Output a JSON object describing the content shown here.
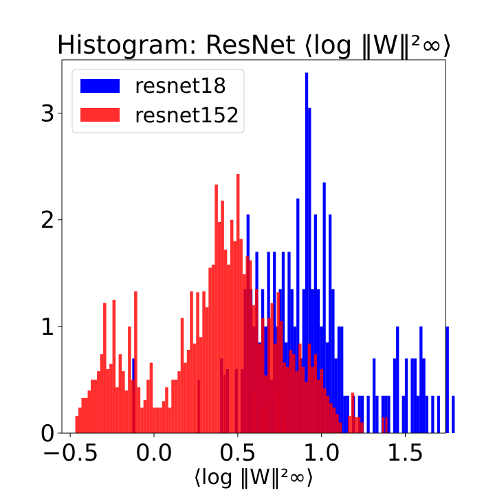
{
  "chart_data": {
    "type": "bar",
    "title": "Histogram: ResNet ⟨log ‖W‖²∞⟩",
    "xlabel": "⟨log ‖W‖²∞⟩",
    "ylabel": "",
    "xlim": [
      -0.55,
      1.74
    ],
    "ylim": [
      0,
      3.5
    ],
    "xticks": [
      -0.5,
      0.0,
      0.5,
      1.0,
      1.5
    ],
    "xtick_labels": [
      "−0.5",
      "0.0",
      "0.5",
      "1.0",
      "1.5"
    ],
    "yticks": [
      0,
      1,
      2,
      3
    ],
    "ytick_labels": [
      "0",
      "1",
      "2",
      "3"
    ],
    "legend_position": "top-left",
    "series": [
      {
        "name": "resnet18",
        "color": "#0000ff",
        "opacity": 1.0,
        "bin_start": -0.13,
        "bin_width": 0.0175,
        "counts": [
          0.7,
          0,
          0,
          0,
          0,
          0,
          0,
          0,
          0,
          0,
          0,
          0,
          0,
          0,
          0,
          0,
          0,
          0,
          0,
          0,
          0,
          0,
          0,
          0,
          0,
          0,
          0,
          0,
          0,
          0,
          0.7,
          0,
          0.6,
          0,
          0,
          0.6,
          0,
          0.6,
          1.35,
          2.05,
          1.35,
          1.0,
          1.7,
          0.85,
          1.35,
          1.0,
          1.7,
          0.5,
          1.7,
          1.0,
          1.35,
          1.7,
          0.85,
          1.7,
          1.35,
          1.0,
          2.2,
          0.7,
          1.35,
          3.38,
          3.05,
          1.35,
          2.05,
          1.35,
          1.0,
          2.35,
          0.85,
          2.05,
          1.35,
          0.7,
          1.0,
          1.0,
          0.35,
          0.35,
          0,
          0.35,
          0,
          0.35,
          0.35,
          0,
          0.35,
          0,
          0.7,
          0.35,
          0,
          0.35,
          0.35,
          0.35,
          0,
          0.7,
          1.0,
          0,
          0.35,
          0.7,
          0,
          0.7,
          0.7,
          0.35,
          1.0,
          0.7,
          0.35,
          0,
          0.35,
          0,
          0.35,
          0,
          0,
          1.0,
          0,
          0.35
        ]
      },
      {
        "name": "resnet152",
        "color": "#ff0000",
        "opacity": 0.82,
        "bin_start": -0.47,
        "bin_width": 0.0185,
        "counts": [
          0.16,
          0.24,
          0.33,
          0.33,
          0.4,
          0.5,
          0.5,
          0.58,
          0.74,
          1.22,
          0.6,
          0.65,
          1.25,
          0.43,
          0.74,
          0.58,
          0.4,
          1.0,
          0.5,
          1.33,
          0.43,
          0.24,
          0.31,
          0.5,
          0.66,
          0.24,
          0.24,
          0.24,
          0.3,
          0.43,
          0.24,
          0.5,
          0.5,
          0.58,
          1.08,
          0.66,
          0.78,
          1.33,
          0.84,
          1.32,
          0.9,
          1.33,
          1.18,
          1.55,
          1.58,
          2.33,
          1.98,
          2.18,
          1.72,
          1.58,
          2.0,
          1.8,
          2.43,
          1.82,
          1.49,
          1.66,
          1.62,
          1.2,
          1.35,
          0.84,
          1.08,
          0.54,
          1.08,
          1.22,
          0.84,
          1.32,
          1.05,
          0.66,
          0.62,
          0.78,
          0.74,
          0.58,
          0.84,
          0.62,
          0.48,
          0.84,
          0.62,
          0.74,
          0.5,
          0.6,
          0.42,
          0.35,
          0.28,
          0.24,
          0.18,
          0.1,
          0.0,
          0.0,
          0.16,
          0.38,
          0.15,
          0.15,
          0.1,
          0.0,
          0.0,
          0.0
        ]
      }
    ],
    "overlays": [
      {
        "x": -0.125,
        "value": 0.4,
        "color": "#dd0022"
      },
      {
        "x": 0.265,
        "value": 0.5,
        "color": "#dd0022"
      },
      {
        "x": 0.42,
        "value": 0.55,
        "color": "#dd0022"
      },
      {
        "x": 0.595,
        "value": 0.38,
        "color": "#dd0022"
      },
      {
        "x": 0.655,
        "value": 0.25,
        "color": "#dd0022"
      },
      {
        "x": 0.735,
        "value": 0.38,
        "color": "#dd0022"
      },
      {
        "x": 0.77,
        "value": 0.15,
        "color": "#dd0022"
      },
      {
        "x": 1.365,
        "value": 0.15,
        "color": "#dd0022"
      },
      {
        "x": 1.385,
        "value": 0.15,
        "color": "#dd0022"
      }
    ]
  }
}
